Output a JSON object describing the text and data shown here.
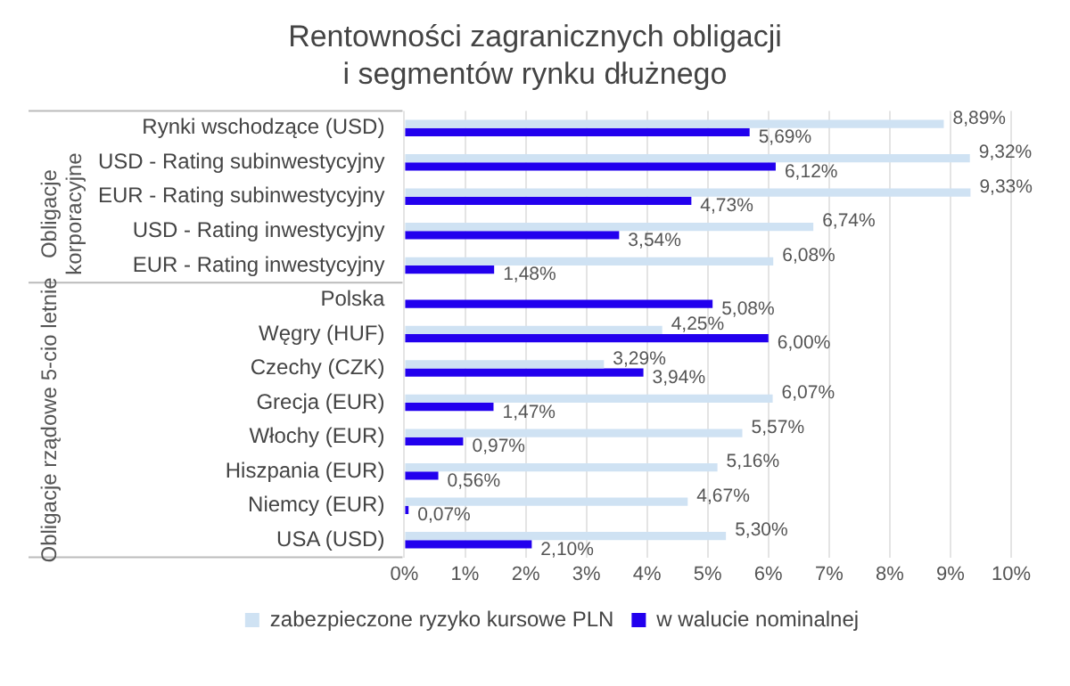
{
  "chart_data": {
    "type": "bar",
    "orientation": "horizontal",
    "title": "Rentowności zagranicznych obligacji\ni segmentów rynku dłużnego",
    "categories": [
      "Rynki wschodzące (USD)",
      "USD - Rating subinwestycyjny",
      "EUR - Rating subinwestycyjny",
      "USD - Rating inwestycyjny",
      "EUR - Rating inwestycyjny",
      "Polska",
      "Węgry (HUF)",
      "Czechy (CZK)",
      "Grecja (EUR)",
      "Włochy (EUR)",
      "Hiszpania (EUR)",
      "Niemcy (EUR)",
      "USA (USD)"
    ],
    "series": [
      {
        "name": "zabezpieczone ryzyko kursowe PLN",
        "color": "#cfe2f3",
        "values": [
          8.89,
          9.32,
          9.33,
          6.74,
          6.08,
          null,
          4.25,
          3.29,
          6.07,
          5.57,
          5.16,
          4.67,
          5.3
        ],
        "value_labels": [
          "8,89%",
          "9,32%",
          "9,33%",
          "6,74%",
          "6,08%",
          null,
          "4,25%",
          "3,29%",
          "6,07%",
          "5,57%",
          "5,16%",
          "4,67%",
          "5,30%"
        ]
      },
      {
        "name": "w walucie nominalnej",
        "color": "#2200ee",
        "values": [
          5.69,
          6.12,
          4.73,
          3.54,
          1.48,
          5.08,
          6.0,
          3.94,
          1.47,
          0.97,
          0.56,
          0.07,
          2.1
        ],
        "value_labels": [
          "5,69%",
          "6,12%",
          "4,73%",
          "3,54%",
          "1,48%",
          "5,08%",
          "6,00%",
          "3,94%",
          "1,47%",
          "0,97%",
          "0,56%",
          "0,07%",
          "2,10%"
        ]
      }
    ],
    "xlim": [
      0,
      10
    ],
    "xticks": [
      {
        "value": 0,
        "label": "0%"
      },
      {
        "value": 1,
        "label": "1%"
      },
      {
        "value": 2,
        "label": "2%"
      },
      {
        "value": 3,
        "label": "3%"
      },
      {
        "value": 4,
        "label": "4%"
      },
      {
        "value": 5,
        "label": "5%"
      },
      {
        "value": 6,
        "label": "6%"
      },
      {
        "value": 7,
        "label": "7%"
      },
      {
        "value": 8,
        "label": "8%"
      },
      {
        "value": 9,
        "label": "9%"
      },
      {
        "value": 10,
        "label": "10%"
      }
    ],
    "grid": "x",
    "legend": "bottom",
    "annotations": [
      "Obligacje\nkorporacyjne",
      "Obligacje rządowe 5-cio letnie"
    ]
  }
}
